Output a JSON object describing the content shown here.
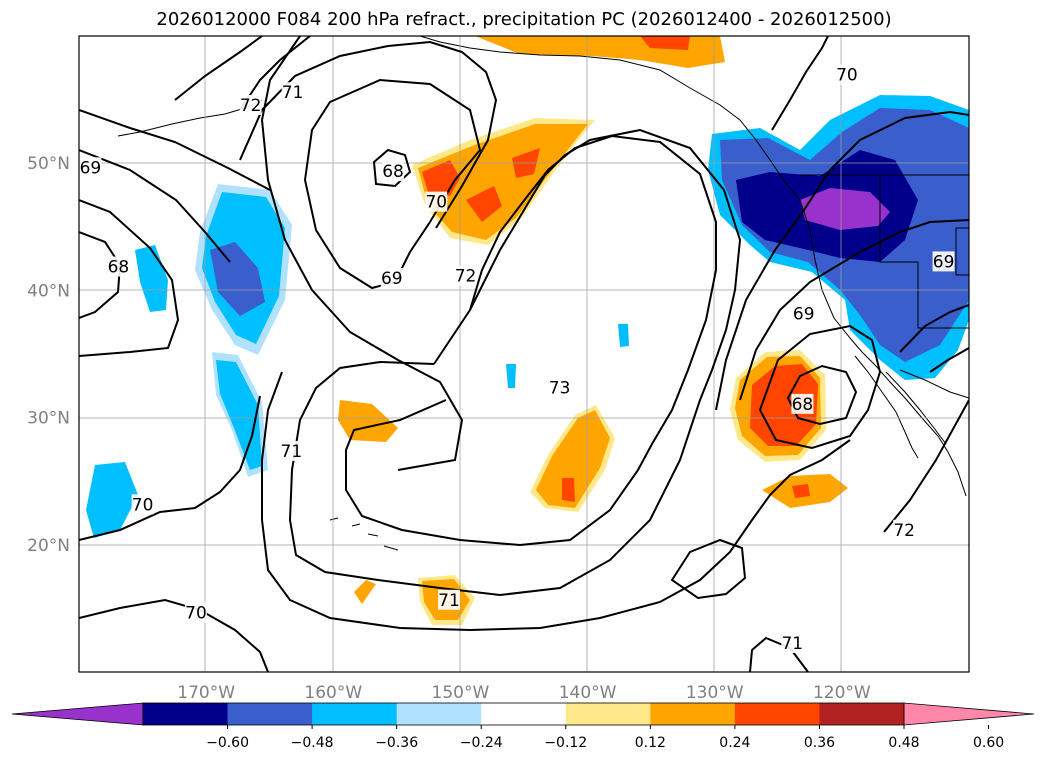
{
  "title": "2026012000 F084 200 hPa refract., precipitation PC (2026012400 - 2026012500)",
  "map": {
    "lon_range": [
      -180,
      -110
    ],
    "lat_range": [
      10,
      60
    ],
    "lon_ticks": [
      {
        "lon": -170,
        "label": "170°W"
      },
      {
        "lon": -160,
        "label": "160°W"
      },
      {
        "lon": -150,
        "label": "150°W"
      },
      {
        "lon": -140,
        "label": "140°W"
      },
      {
        "lon": -130,
        "label": "130°W"
      },
      {
        "lon": -120,
        "label": "120°W"
      }
    ],
    "lat_ticks": [
      {
        "lat": 20,
        "label": "20°N"
      },
      {
        "lat": 30,
        "label": "30°N"
      },
      {
        "lat": 40,
        "label": "40°N"
      },
      {
        "lat": 50,
        "label": "50°N"
      }
    ],
    "grid": true,
    "coastlines": true
  },
  "chart_data": {
    "type": "heatmap",
    "field": "precipitation PC (shaded) with 200 hPa refractivity contours",
    "colorbar": {
      "extend": "both",
      "ticks": [
        "−0.60",
        "−0.48",
        "−0.36",
        "−0.24",
        "−0.12",
        "0.12",
        "0.24",
        "0.36",
        "0.48",
        "0.60"
      ],
      "bin_colors": [
        "#9932cc",
        "#00008b",
        "#3a5fcd",
        "#00bfff",
        "#b0e2ff",
        "#ffffff",
        "#ffe88a",
        "#ffa500",
        "#ff4500",
        "#b22222",
        "#ff88aa"
      ]
    },
    "contour_labels": [
      {
        "text": "72",
        "lon": -166.5,
        "lat": 54.5
      },
      {
        "text": "71",
        "lon": -163.2,
        "lat": 55.5
      },
      {
        "text": "69",
        "lon": -179.1,
        "lat": 49.6
      },
      {
        "text": "68",
        "lon": -176.9,
        "lat": 41.8
      },
      {
        "text": "68",
        "lon": -155.3,
        "lat": 49.3
      },
      {
        "text": "70",
        "lon": -151.9,
        "lat": 46.9
      },
      {
        "text": "69",
        "lon": -155.4,
        "lat": 40.9
      },
      {
        "text": "72",
        "lon": -149.6,
        "lat": 41.1
      },
      {
        "text": "73",
        "lon": -142.2,
        "lat": 32.3
      },
      {
        "text": "71",
        "lon": -163.3,
        "lat": 27.3
      },
      {
        "text": "70",
        "lon": -175.0,
        "lat": 23.1
      },
      {
        "text": "70",
        "lon": -170.8,
        "lat": 14.6
      },
      {
        "text": "71",
        "lon": -150.9,
        "lat": 15.6
      },
      {
        "text": "71",
        "lon": -123.9,
        "lat": 12.2
      },
      {
        "text": "68",
        "lon": -123.1,
        "lat": 31.0
      },
      {
        "text": "69",
        "lon": -123.0,
        "lat": 38.1
      },
      {
        "text": "70",
        "lon": -119.6,
        "lat": 56.9
      },
      {
        "text": "72",
        "lon": -115.1,
        "lat": 21.1
      },
      {
        "text": "69",
        "lon": -112.0,
        "lat": 42.2
      }
    ]
  }
}
